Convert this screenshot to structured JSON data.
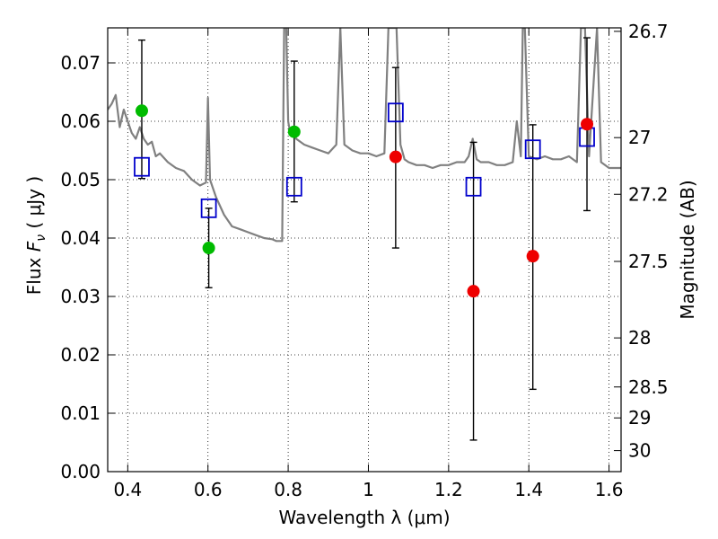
{
  "chart_data": {
    "type": "scatter",
    "xlabel": "Wavelength  λ (μm)",
    "ylabel": "Flux  F_ν  ( μJy )",
    "ylabel_parts": [
      "Flux ",
      "F",
      "ν",
      " ( μJy )"
    ],
    "ylabel_right": "Magnitude (AB)",
    "xlim": [
      0.35,
      1.63
    ],
    "ylim": [
      0.0,
      0.076
    ],
    "grid": true,
    "xticks": [
      0.4,
      0.6,
      0.8,
      1.0,
      1.2,
      1.4,
      1.6
    ],
    "xtick_labels": [
      "0.4",
      "0.6",
      "0.8",
      "1",
      "1.2",
      "1.4",
      "1.6"
    ],
    "yticks": [
      0.0,
      0.01,
      0.02,
      0.03,
      0.04,
      0.05,
      0.06,
      0.07
    ],
    "ytick_labels": [
      "0.00",
      "0.01",
      "0.02",
      "0.03",
      "0.04",
      "0.05",
      "0.06",
      "0.07"
    ],
    "right_ticks": [
      {
        "flux": 0.0754,
        "label": "26.7"
      },
      {
        "flux": 0.0572,
        "label": "27"
      },
      {
        "flux": 0.0475,
        "label": "27.2"
      },
      {
        "flux": 0.036,
        "label": "27.5"
      },
      {
        "flux": 0.0229,
        "label": "28"
      },
      {
        "flux": 0.0145,
        "label": "28.5"
      },
      {
        "flux": 0.0092,
        "label": "29"
      },
      {
        "flux": 0.0036,
        "label": "30"
      }
    ],
    "series": [
      {
        "name": "",
        "kind": "line",
        "color": "#808080",
        "x": [
          0.35,
          0.36,
          0.37,
          0.38,
          0.39,
          0.4,
          0.41,
          0.42,
          0.43,
          0.44,
          0.45,
          0.46,
          0.47,
          0.48,
          0.5,
          0.52,
          0.54,
          0.56,
          0.58,
          0.595,
          0.6,
          0.605,
          0.62,
          0.64,
          0.66,
          0.68,
          0.7,
          0.72,
          0.74,
          0.76,
          0.77,
          0.785,
          0.79,
          0.795,
          0.8,
          0.805,
          0.81,
          0.82,
          0.84,
          0.86,
          0.88,
          0.9,
          0.92,
          0.93,
          0.94,
          0.96,
          0.98,
          1.0,
          1.02,
          1.04,
          1.05,
          1.055,
          1.06,
          1.07,
          1.08,
          1.09,
          1.1,
          1.12,
          1.14,
          1.16,
          1.18,
          1.2,
          1.22,
          1.24,
          1.25,
          1.26,
          1.27,
          1.28,
          1.3,
          1.32,
          1.34,
          1.36,
          1.37,
          1.38,
          1.385,
          1.39,
          1.4,
          1.42,
          1.44,
          1.46,
          1.48,
          1.5,
          1.52,
          1.53,
          1.535,
          1.54,
          1.55,
          1.57,
          1.58,
          1.6,
          1.62,
          1.63
        ],
        "y": [
          0.062,
          0.063,
          0.0645,
          0.059,
          0.062,
          0.06,
          0.058,
          0.057,
          0.059,
          0.057,
          0.056,
          0.0565,
          0.054,
          0.0545,
          0.053,
          0.052,
          0.0515,
          0.05,
          0.049,
          0.0495,
          0.064,
          0.05,
          0.047,
          0.044,
          0.042,
          0.0415,
          0.041,
          0.0405,
          0.04,
          0.0398,
          0.0395,
          0.0395,
          0.076,
          0.076,
          0.06,
          0.058,
          0.059,
          0.057,
          0.056,
          0.0555,
          0.055,
          0.0545,
          0.056,
          0.076,
          0.056,
          0.055,
          0.0545,
          0.0545,
          0.054,
          0.0545,
          0.076,
          0.076,
          0.076,
          0.076,
          0.056,
          0.0535,
          0.053,
          0.0525,
          0.0525,
          0.052,
          0.0525,
          0.0525,
          0.053,
          0.053,
          0.054,
          0.057,
          0.0535,
          0.053,
          0.053,
          0.0525,
          0.0525,
          0.053,
          0.06,
          0.054,
          0.076,
          0.076,
          0.054,
          0.0535,
          0.054,
          0.0535,
          0.0535,
          0.054,
          0.053,
          0.076,
          0.076,
          0.076,
          0.054,
          0.076,
          0.053,
          0.052,
          0.052,
          0.052
        ]
      },
      {
        "name": "",
        "kind": "open-square",
        "color": "#0000cc",
        "x": [
          0.435,
          0.602,
          0.815,
          1.068,
          1.262,
          1.41,
          1.545
        ],
        "y": [
          0.0522,
          0.0451,
          0.0488,
          0.0615,
          0.0488,
          0.0552,
          0.0573
        ]
      },
      {
        "name": "",
        "kind": "filled-circle",
        "color": "#00bb00",
        "x": [
          0.435,
          0.602,
          0.815
        ],
        "y": [
          0.0618,
          0.0383,
          0.0582
        ]
      },
      {
        "name": "",
        "kind": "filled-circle",
        "color": "#ee0000",
        "x": [
          1.068,
          1.262,
          1.41,
          1.545
        ],
        "y": [
          0.0539,
          0.0309,
          0.0369,
          0.0595
        ]
      }
    ],
    "errorbars": {
      "color": "#000000",
      "x": [
        0.435,
        0.602,
        0.815,
        1.068,
        1.262,
        1.41,
        1.545
      ],
      "low": [
        0.0502,
        0.0315,
        0.0462,
        0.0383,
        0.0054,
        0.0141,
        0.0447
      ],
      "high": [
        0.0739,
        0.0451,
        0.0703,
        0.0692,
        0.0564,
        0.0594,
        0.0743
      ]
    }
  }
}
